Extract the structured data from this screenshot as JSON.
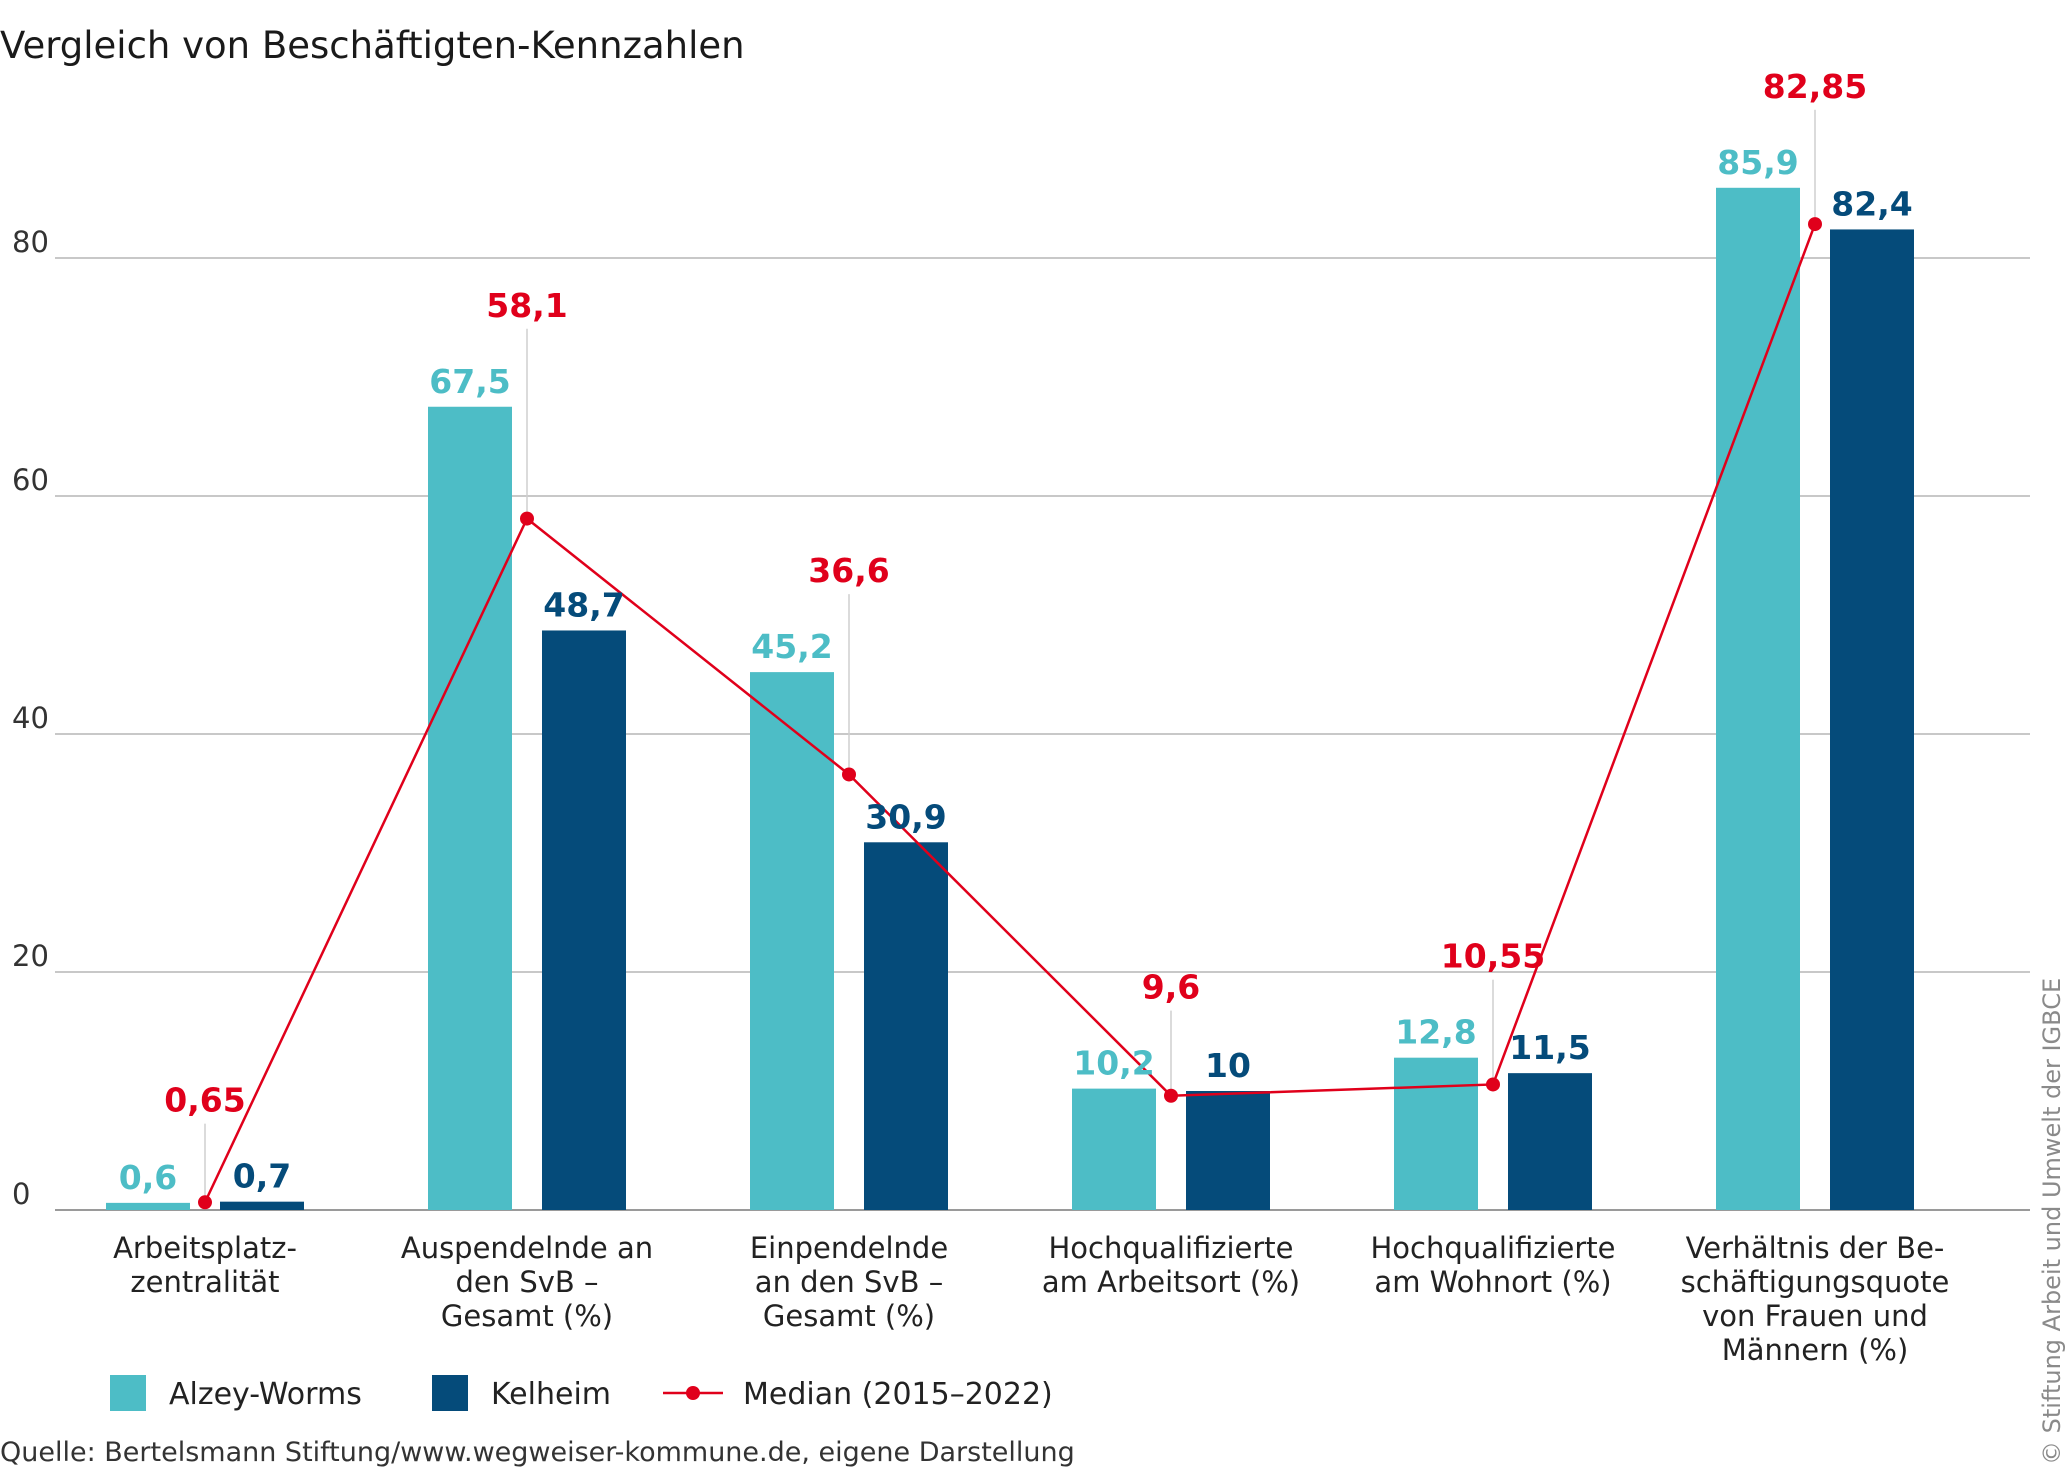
{
  "chart_data": {
    "type": "bar",
    "title": "Vergleich von Beschäftigten-Kennzahlen",
    "xlabel": "",
    "ylabel": "",
    "ylim": [
      0,
      90
    ],
    "yticks": [
      0,
      20,
      40,
      60,
      80
    ],
    "grid": true,
    "legend_position": "bottom-left",
    "categories": [
      [
        "Arbeitsplatz-",
        "zentralität"
      ],
      [
        "Auspendelnde an",
        "den SvB –",
        "Gesamt (%)"
      ],
      [
        "Einpendelnde",
        "an den SvB –",
        "Gesamt (%)"
      ],
      [
        "Hochqualifizierte",
        "am Arbeitsort (%)"
      ],
      [
        "Hochqualifizierte",
        "am Wohnort (%)"
      ],
      [
        "Verhältnis der Be-",
        "schäftigungsquote",
        "von Frauen und",
        "Männern (%)"
      ]
    ],
    "series": [
      {
        "name": "Alzey-Worms",
        "kind": "bar",
        "color": "#4dbdc6",
        "values": [
          0.6,
          67.5,
          45.2,
          10.2,
          12.8,
          85.9
        ],
        "labels": [
          "0,6",
          "67,5",
          "45,2",
          "10,2",
          "12,8",
          "85,9"
        ]
      },
      {
        "name": "Kelheim",
        "kind": "bar",
        "color": "#054b7a",
        "values": [
          0.7,
          48.7,
          30.9,
          10,
          11.5,
          82.4
        ],
        "labels": [
          "0,7",
          "48,7",
          "30,9",
          "10",
          "11,5",
          "82,4"
        ]
      },
      {
        "name": "Median (2015–2022)",
        "kind": "line",
        "color": "#e0001b",
        "values": [
          0.65,
          58.1,
          36.6,
          9.6,
          10.55,
          82.85
        ],
        "labels": [
          "0,65",
          "58,1",
          "36,6",
          "9,6",
          "10,55",
          "82,85"
        ]
      }
    ],
    "source": "Quelle: Bertelsmann Stiftung/www.wegweiser-kommune.de, eigene Darstellung",
    "copyright": "© Stiftung Arbeit und Umwelt der IGBCE"
  }
}
